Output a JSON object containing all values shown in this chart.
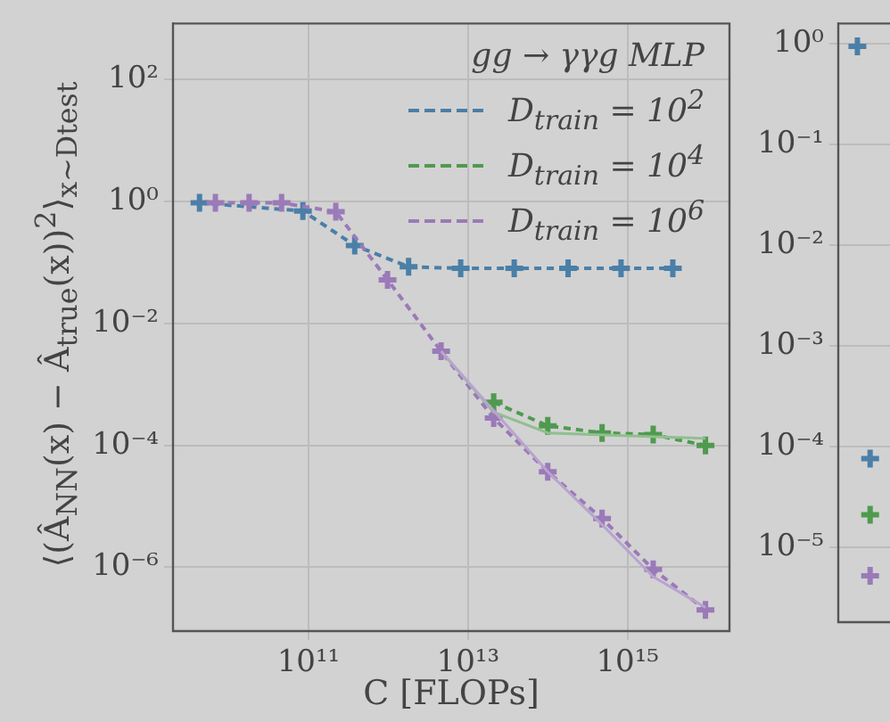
{
  "chart_data": [
    {
      "type": "line",
      "xlabel": "C [FLOPs]",
      "ylabel": "⟨(Â$_{NN}$(x) − Â$_{true}$(x))$^{2}$⟩$_{x∼Dtest}$",
      "legend_title": "gg → γγg MLP",
      "legend": "top right",
      "log": "xy",
      "grid": true,
      "marker": "cross",
      "line_style": "dashed",
      "xlim": [
        2000000000.0,
        1.9e+16
      ],
      "xticks": [
        {
          "value": 100000000000.0,
          "label": "10¹¹"
        },
        {
          "value": 10000000000000.0,
          "label": "10¹³"
        },
        {
          "value": 1000000000000000.0,
          "label": "10¹⁵"
        }
      ],
      "ylim": [
        9e-08,
        830
      ],
      "yticks": [
        {
          "value": 100,
          "label": "10²"
        },
        {
          "value": 1,
          "label": "10⁰"
        },
        {
          "value": 0.01,
          "label": "10⁻²"
        },
        {
          "value": 0.0001,
          "label": "10⁻⁴"
        },
        {
          "value": 1e-06,
          "label": "10⁻⁶"
        }
      ],
      "series": [
        {
          "name": "D$_{train}$ = 10$^{2}$",
          "color": "#4a7fa8",
          "x": [
            4300000000.0,
            85000000000.0,
            380000000000.0,
            1800000000000.0,
            8100000000000.0,
            38000000000000.0,
            180000000000000.0,
            830000000000000.0,
            3700000000000000.0
          ],
          "values": [
            0.95,
            0.7,
            0.19,
            0.085,
            0.08,
            0.08,
            0.08,
            0.08,
            0.08
          ]
        },
        {
          "name": "D$_{train}$ = 10$^{4}$",
          "color": "#4f9a4f",
          "x": [
            21000000000000.0,
            100000000000000.0,
            480000000000000.0,
            2100000000000000.0,
            9500000000000000.0
          ],
          "values": [
            0.00051,
            0.00021,
            0.00016,
            0.00015,
            0.0001
          ]
        },
        {
          "name": "D$_{train}$ = 10$^{6}$",
          "color": "#9a7ab8",
          "x": [
            6800000000.0,
            18000000000.0,
            46000000000.0,
            220000000000.0,
            980000000000.0,
            4600000000000.0,
            21000000000000.0,
            100000000000000.0,
            480000000000000.0,
            2100000000000000.0,
            9500000000000000.0
          ],
          "values": [
            0.95,
            0.95,
            0.95,
            0.68,
            0.052,
            0.0035,
            0.00028,
            3.7e-05,
            6.3e-06,
            9.3e-07,
            2e-07
          ]
        },
        {
          "color": "#8fbf8f",
          "marker": "none",
          "line_style": "solid",
          "x": [
            4600000000000.0,
            21000000000000.0,
            100000000000000.0,
            9500000000000000.0
          ],
          "values": [
            0.0035,
            0.00035,
            0.00016,
            0.00013
          ]
        },
        {
          "color": "#b9a3cf",
          "marker": "none",
          "line_style": "solid",
          "x": [
            4600000000000.0,
            100000000000000.0,
            480000000000000.0,
            2100000000000000.0,
            9500000000000000.0
          ],
          "values": [
            0.0035,
            3.7e-05,
            5e-06,
            7e-07,
            2.2e-07
          ]
        }
      ]
    },
    {
      "type": "scatter",
      "log": "y",
      "grid": "y",
      "marker": "cross",
      "tick_labels": "y",
      "categories": [
        null,
        null,
        null,
        null,
        null,
        null,
        null,
        null,
        null,
        null,
        null,
        null,
        null,
        null,
        null,
        null,
        null,
        null,
        null,
        null,
        null
      ],
      "ylim": [
        1.8e-06,
        1.6
      ],
      "yticks": [
        {
          "value": 1,
          "label": "10⁰"
        },
        {
          "value": 0.1,
          "label": "10⁻¹"
        },
        {
          "value": 0.01,
          "label": "10⁻²"
        },
        {
          "value": 0.001,
          "label": "10⁻³"
        },
        {
          "value": 0.0001,
          "label": "10⁻⁴"
        },
        {
          "value": 1e-05,
          "label": "10⁻⁵"
        }
      ],
      "series": [
        {
          "color": "#4a7fa8",
          "values": [
            null,
            0.95,
            7.6e-05,
            null,
            null,
            null,
            null,
            null,
            null,
            null,
            null,
            null,
            null,
            null,
            null,
            null,
            null,
            null,
            null,
            null,
            null
          ]
        },
        {
          "color": "#4f9a4f",
          "values": [
            null,
            null,
            2.1e-05,
            null,
            null,
            null,
            null,
            null,
            null,
            null,
            null,
            null,
            null,
            null,
            null,
            null,
            null,
            null,
            null,
            null,
            null
          ]
        },
        {
          "color": "#9a7ab8",
          "values": [
            null,
            null,
            5.2e-06,
            null,
            null,
            null,
            null,
            null,
            null,
            null,
            null,
            null,
            null,
            null,
            null,
            null,
            null,
            null,
            null,
            null,
            null
          ]
        }
      ]
    }
  ]
}
